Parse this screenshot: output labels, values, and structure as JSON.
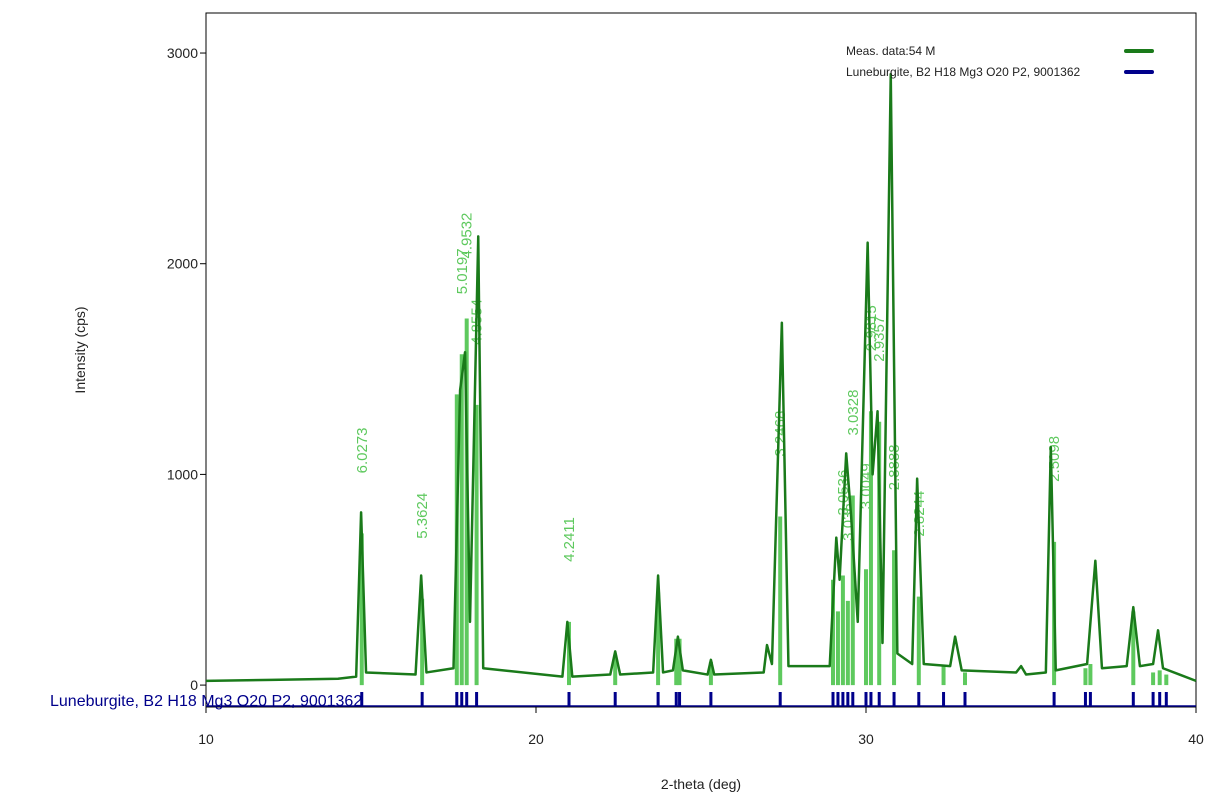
{
  "chart_data": {
    "type": "line",
    "x_label": "2-theta (deg)",
    "y_label": "Intensity (cps)",
    "xlim": [
      10,
      40
    ],
    "ylim": [
      -104,
      3190
    ],
    "xticks": [
      10,
      20,
      30,
      40
    ],
    "yticks": [
      0,
      1000,
      2000,
      3000
    ],
    "legend": "upper right",
    "series": [
      {
        "name": "Meas. data:54 M",
        "color": "#1a7a1a",
        "x": [
          10.0,
          12.0,
          14.0,
          14.55,
          14.7,
          14.85,
          16.35,
          16.52,
          16.68,
          17.5,
          17.7,
          17.85,
          18.0,
          18.25,
          18.4,
          20.8,
          20.95,
          21.1,
          22.25,
          22.4,
          22.55,
          23.55,
          23.7,
          23.85,
          24.15,
          24.3,
          24.45,
          25.2,
          25.3,
          25.4,
          26.9,
          27.0,
          27.15,
          27.45,
          27.65,
          28.9,
          29.1,
          29.2,
          29.4,
          29.55,
          29.75,
          30.05,
          30.2,
          30.35,
          30.5,
          30.75,
          30.95,
          31.4,
          31.55,
          31.75,
          32.55,
          32.7,
          32.9,
          34.55,
          34.7,
          34.85,
          35.45,
          35.6,
          35.75,
          36.7,
          36.95,
          37.15,
          37.9,
          38.1,
          38.3,
          38.7,
          38.85,
          39.0,
          39.5,
          40.0
        ],
        "values": [
          20,
          25,
          30,
          40,
          820,
          60,
          50,
          520,
          60,
          80,
          1400,
          1580,
          300,
          2130,
          80,
          40,
          300,
          40,
          50,
          160,
          50,
          60,
          520,
          60,
          70,
          230,
          70,
          50,
          120,
          50,
          60,
          190,
          100,
          1720,
          90,
          90,
          700,
          500,
          1100,
          800,
          300,
          2100,
          1000,
          1300,
          200,
          2900,
          150,
          100,
          980,
          100,
          90,
          230,
          70,
          60,
          90,
          50,
          60,
          1130,
          70,
          100,
          590,
          80,
          90,
          370,
          90,
          100,
          260,
          80,
          50,
          20
        ]
      },
      {
        "name": "Luneburgite, B2 H18 Mg3 O20 P2, 9001362",
        "color": "#00008b",
        "stick_color": "#5ec95e",
        "x": [
          14.72,
          16.55,
          17.6,
          17.75,
          17.9,
          18.2,
          21.0,
          22.4,
          23.7,
          24.25,
          24.35,
          25.3,
          27.4,
          29.0,
          29.15,
          29.3,
          29.45,
          29.6,
          30.0,
          30.15,
          30.4,
          30.85,
          31.6,
          32.35,
          33.0,
          35.7,
          36.65,
          36.8,
          38.1,
          38.7,
          38.9,
          39.1
        ],
        "values": [
          720,
          410,
          1380,
          1570,
          1740,
          1330,
          300,
          140,
          440,
          220,
          220,
          110,
          800,
          500,
          350,
          520,
          400,
          900,
          550,
          1300,
          1250,
          640,
          420,
          90,
          60,
          680,
          80,
          100,
          350,
          60,
          70,
          50
        ],
        "d_spacing_labels": [
          "6.0273",
          "5.3624",
          null,
          "5.0197",
          "4.9532",
          "4.8554",
          "4.2411",
          null,
          null,
          null,
          null,
          null,
          "3.2468",
          null,
          null,
          "3.0536",
          "3.0363",
          "3.0328",
          "3.0049",
          "2.9815",
          "2.9357",
          "2.8888",
          "2.8244",
          null,
          null,
          "2.5098",
          null,
          null,
          null,
          null,
          null,
          null
        ]
      }
    ]
  }
}
